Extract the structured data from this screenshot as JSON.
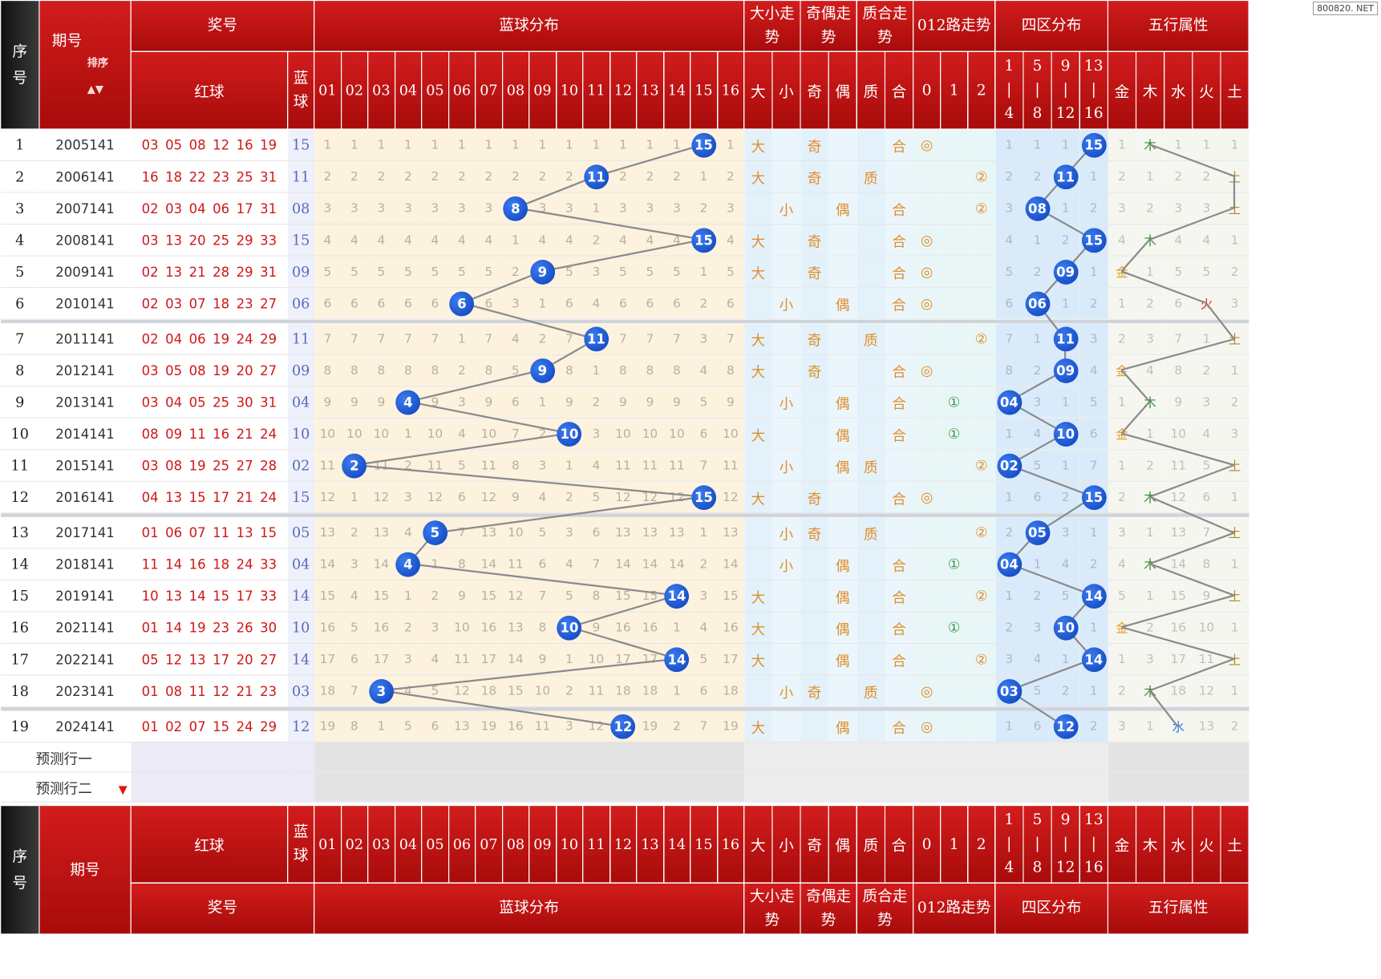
{
  "watermark": "800820. NET",
  "header": {
    "seq": "序号",
    "period": "期号",
    "sort": "排序",
    "prize": "奖号",
    "blue_dist": "蓝球分布",
    "size_trend": "大小走势",
    "oe_trend": "奇偶走势",
    "pc_trend": "质合走势",
    "r012_trend": "012路走势",
    "zone_dist": "四区分布",
    "wuxing": "五行属性",
    "red": "红球",
    "blue": "蓝球",
    "numbers": [
      "01",
      "02",
      "03",
      "04",
      "05",
      "06",
      "07",
      "08",
      "09",
      "10",
      "11",
      "12",
      "13",
      "14",
      "15",
      "16"
    ],
    "size_cols": [
      "大",
      "小"
    ],
    "oe_cols": [
      "奇",
      "偶"
    ],
    "pc_cols": [
      "质",
      "合"
    ],
    "r012_cols": [
      "0",
      "1",
      "2"
    ],
    "zone_cols": [
      [
        "1",
        "|",
        "4"
      ],
      [
        "5",
        "|",
        "8"
      ],
      [
        "9",
        "|",
        "12"
      ],
      [
        "13",
        "|",
        "16"
      ]
    ],
    "wx_cols": [
      "金",
      "木",
      "水",
      "火",
      "土"
    ]
  },
  "rows": [
    {
      "seq": "1",
      "period": "2005141",
      "red": "03 05 08 12 16 19",
      "blue": "15",
      "dist": [
        "1",
        "1",
        "1",
        "1",
        "1",
        "1",
        "1",
        "1",
        "1",
        "1",
        "1",
        "1",
        "1",
        "1",
        "15",
        "1"
      ],
      "size": [
        "大",
        ""
      ],
      "oe": [
        "奇",
        ""
      ],
      "pc": [
        "",
        "合"
      ],
      "r012": [
        "◎",
        "",
        ""
      ],
      "zone": [
        "1",
        "1",
        "1",
        "15"
      ],
      "wx": [
        "1",
        "木",
        "1",
        "1",
        "1"
      ]
    },
    {
      "seq": "2",
      "period": "2006141",
      "red": "16 18 22 23 25 31",
      "blue": "11",
      "dist": [
        "2",
        "2",
        "2",
        "2",
        "2",
        "2",
        "2",
        "2",
        "2",
        "2",
        "11",
        "2",
        "2",
        "2",
        "1",
        "2"
      ],
      "size": [
        "大",
        ""
      ],
      "oe": [
        "奇",
        ""
      ],
      "pc": [
        "质",
        ""
      ],
      "r012": [
        "",
        "",
        "②"
      ],
      "zone": [
        "2",
        "2",
        "11",
        "1"
      ],
      "wx": [
        "2",
        "1",
        "2",
        "2",
        "土"
      ]
    },
    {
      "seq": "3",
      "period": "2007141",
      "red": "02 03 04 06 17 31",
      "blue": "08",
      "dist": [
        "3",
        "3",
        "3",
        "3",
        "3",
        "3",
        "3",
        "8",
        "3",
        "3",
        "1",
        "3",
        "3",
        "3",
        "2",
        "3"
      ],
      "size": [
        "",
        "小"
      ],
      "oe": [
        "",
        "偶"
      ],
      "pc": [
        "",
        "合"
      ],
      "r012": [
        "",
        "",
        "②"
      ],
      "zone": [
        "3",
        "08",
        "1",
        "2"
      ],
      "wx": [
        "3",
        "2",
        "3",
        "3",
        "土"
      ]
    },
    {
      "seq": "4",
      "period": "2008141",
      "red": "03 13 20 25 29 33",
      "blue": "15",
      "dist": [
        "4",
        "4",
        "4",
        "4",
        "4",
        "4",
        "4",
        "1",
        "4",
        "4",
        "2",
        "4",
        "4",
        "4",
        "15",
        "4"
      ],
      "size": [
        "大",
        ""
      ],
      "oe": [
        "奇",
        ""
      ],
      "pc": [
        "",
        "合"
      ],
      "r012": [
        "◎",
        "",
        ""
      ],
      "zone": [
        "4",
        "1",
        "2",
        "15"
      ],
      "wx": [
        "4",
        "木",
        "4",
        "4",
        "1"
      ]
    },
    {
      "seq": "5",
      "period": "2009141",
      "red": "02 13 21 28 29 31",
      "blue": "09",
      "dist": [
        "5",
        "5",
        "5",
        "5",
        "5",
        "5",
        "5",
        "2",
        "9",
        "5",
        "3",
        "5",
        "5",
        "5",
        "1",
        "5"
      ],
      "size": [
        "大",
        ""
      ],
      "oe": [
        "奇",
        ""
      ],
      "pc": [
        "",
        "合"
      ],
      "r012": [
        "◎",
        "",
        ""
      ],
      "zone": [
        "5",
        "2",
        "09",
        "1"
      ],
      "wx": [
        "金",
        "1",
        "5",
        "5",
        "2"
      ]
    },
    {
      "seq": "6",
      "period": "2010141",
      "red": "02 03 07 18 23 27",
      "blue": "06",
      "dist": [
        "6",
        "6",
        "6",
        "6",
        "6",
        "6",
        "6",
        "3",
        "1",
        "6",
        "4",
        "6",
        "6",
        "6",
        "2",
        "6"
      ],
      "size": [
        "",
        "小"
      ],
      "oe": [
        "",
        "偶"
      ],
      "pc": [
        "",
        "合"
      ],
      "r012": [
        "◎",
        "",
        ""
      ],
      "zone": [
        "6",
        "06",
        "1",
        "2"
      ],
      "wx": [
        "1",
        "2",
        "6",
        "火",
        "3"
      ]
    },
    {
      "seq": "7",
      "period": "2011141",
      "red": "02 04 06 19 24 29",
      "blue": "11",
      "dist": [
        "7",
        "7",
        "7",
        "7",
        "7",
        "1",
        "7",
        "4",
        "2",
        "7",
        "11",
        "7",
        "7",
        "7",
        "3",
        "7"
      ],
      "size": [
        "大",
        ""
      ],
      "oe": [
        "奇",
        ""
      ],
      "pc": [
        "质",
        ""
      ],
      "r012": [
        "",
        "",
        "②"
      ],
      "zone": [
        "7",
        "1",
        "11",
        "3"
      ],
      "wx": [
        "2",
        "3",
        "7",
        "1",
        "土"
      ]
    },
    {
      "seq": "8",
      "period": "2012141",
      "red": "03 05 08 19 20 27",
      "blue": "09",
      "dist": [
        "8",
        "8",
        "8",
        "8",
        "8",
        "2",
        "8",
        "5",
        "9",
        "8",
        "1",
        "8",
        "8",
        "8",
        "4",
        "8"
      ],
      "size": [
        "大",
        ""
      ],
      "oe": [
        "奇",
        ""
      ],
      "pc": [
        "",
        "合"
      ],
      "r012": [
        "◎",
        "",
        ""
      ],
      "zone": [
        "8",
        "2",
        "09",
        "4"
      ],
      "wx": [
        "金",
        "4",
        "8",
        "2",
        "1"
      ]
    },
    {
      "seq": "9",
      "period": "2013141",
      "red": "03 04 05 25 30 31",
      "blue": "04",
      "dist": [
        "9",
        "9",
        "9",
        "4",
        "9",
        "3",
        "9",
        "6",
        "1",
        "9",
        "2",
        "9",
        "9",
        "9",
        "5",
        "9"
      ],
      "size": [
        "",
        "小"
      ],
      "oe": [
        "",
        "偶"
      ],
      "pc": [
        "",
        "合"
      ],
      "r012": [
        "",
        "①",
        ""
      ],
      "zone": [
        "04",
        "3",
        "1",
        "5"
      ],
      "wx": [
        "1",
        "木",
        "9",
        "3",
        "2"
      ]
    },
    {
      "seq": "10",
      "period": "2014141",
      "red": "08 09 11 16 21 24",
      "blue": "10",
      "dist": [
        "10",
        "10",
        "10",
        "1",
        "10",
        "4",
        "10",
        "7",
        "2",
        "10",
        "3",
        "10",
        "10",
        "10",
        "6",
        "10"
      ],
      "size": [
        "大",
        ""
      ],
      "oe": [
        "",
        "偶"
      ],
      "pc": [
        "",
        "合"
      ],
      "r012": [
        "",
        "①",
        ""
      ],
      "zone": [
        "1",
        "4",
        "10",
        "6"
      ],
      "wx": [
        "金",
        "1",
        "10",
        "4",
        "3"
      ]
    },
    {
      "seq": "11",
      "period": "2015141",
      "red": "03 08 19 25 27 28",
      "blue": "02",
      "dist": [
        "11",
        "2",
        "11",
        "2",
        "11",
        "5",
        "11",
        "8",
        "3",
        "1",
        "4",
        "11",
        "11",
        "11",
        "7",
        "11"
      ],
      "size": [
        "",
        "小"
      ],
      "oe": [
        "",
        "偶"
      ],
      "pc": [
        "质",
        ""
      ],
      "r012": [
        "",
        "",
        "②"
      ],
      "zone": [
        "02",
        "5",
        "1",
        "7"
      ],
      "wx": [
        "1",
        "2",
        "11",
        "5",
        "土"
      ]
    },
    {
      "seq": "12",
      "period": "2016141",
      "red": "04 13 15 17 21 24",
      "blue": "15",
      "dist": [
        "12",
        "1",
        "12",
        "3",
        "12",
        "6",
        "12",
        "9",
        "4",
        "2",
        "5",
        "12",
        "12",
        "12",
        "15",
        "12"
      ],
      "size": [
        "大",
        ""
      ],
      "oe": [
        "奇",
        ""
      ],
      "pc": [
        "",
        "合"
      ],
      "r012": [
        "◎",
        "",
        ""
      ],
      "zone": [
        "1",
        "6",
        "2",
        "15"
      ],
      "wx": [
        "2",
        "木",
        "12",
        "6",
        "1"
      ]
    },
    {
      "seq": "13",
      "period": "2017141",
      "red": "01 06 07 11 13 15",
      "blue": "05",
      "dist": [
        "13",
        "2",
        "13",
        "4",
        "5",
        "7",
        "13",
        "10",
        "5",
        "3",
        "6",
        "13",
        "13",
        "13",
        "1",
        "13"
      ],
      "size": [
        "",
        "小"
      ],
      "oe": [
        "奇",
        ""
      ],
      "pc": [
        "质",
        ""
      ],
      "r012": [
        "",
        "",
        "②"
      ],
      "zone": [
        "2",
        "05",
        "3",
        "1"
      ],
      "wx": [
        "3",
        "1",
        "13",
        "7",
        "土"
      ]
    },
    {
      "seq": "14",
      "period": "2018141",
      "red": "11 14 16 18 24 33",
      "blue": "04",
      "dist": [
        "14",
        "3",
        "14",
        "4",
        "1",
        "8",
        "14",
        "11",
        "6",
        "4",
        "7",
        "14",
        "14",
        "14",
        "2",
        "14"
      ],
      "size": [
        "",
        "小"
      ],
      "oe": [
        "",
        "偶"
      ],
      "pc": [
        "",
        "合"
      ],
      "r012": [
        "",
        "①",
        ""
      ],
      "zone": [
        "04",
        "1",
        "4",
        "2"
      ],
      "wx": [
        "4",
        "木",
        "14",
        "8",
        "1"
      ]
    },
    {
      "seq": "15",
      "period": "2019141",
      "red": "10 13 14 15 17 33",
      "blue": "14",
      "dist": [
        "15",
        "4",
        "15",
        "1",
        "2",
        "9",
        "15",
        "12",
        "7",
        "5",
        "8",
        "15",
        "15",
        "14",
        "3",
        "15"
      ],
      "size": [
        "大",
        ""
      ],
      "oe": [
        "",
        "偶"
      ],
      "pc": [
        "",
        "合"
      ],
      "r012": [
        "",
        "",
        "②"
      ],
      "zone": [
        "1",
        "2",
        "5",
        "14"
      ],
      "wx": [
        "5",
        "1",
        "15",
        "9",
        "土"
      ]
    },
    {
      "seq": "16",
      "period": "2021141",
      "red": "01 14 19 23 26 30",
      "blue": "10",
      "dist": [
        "16",
        "5",
        "16",
        "2",
        "3",
        "10",
        "16",
        "13",
        "8",
        "10",
        "9",
        "16",
        "16",
        "1",
        "4",
        "16"
      ],
      "size": [
        "大",
        ""
      ],
      "oe": [
        "",
        "偶"
      ],
      "pc": [
        "",
        "合"
      ],
      "r012": [
        "",
        "①",
        ""
      ],
      "zone": [
        "2",
        "3",
        "10",
        "1"
      ],
      "wx": [
        "金",
        "2",
        "16",
        "10",
        "1"
      ]
    },
    {
      "seq": "17",
      "period": "2022141",
      "red": "05 12 13 17 20 27",
      "blue": "14",
      "dist": [
        "17",
        "6",
        "17",
        "3",
        "4",
        "11",
        "17",
        "14",
        "9",
        "1",
        "10",
        "17",
        "17",
        "14",
        "5",
        "17"
      ],
      "size": [
        "大",
        ""
      ],
      "oe": [
        "",
        "偶"
      ],
      "pc": [
        "",
        "合"
      ],
      "r012": [
        "",
        "",
        "②"
      ],
      "zone": [
        "3",
        "4",
        "1",
        "14"
      ],
      "wx": [
        "1",
        "3",
        "17",
        "11",
        "土"
      ]
    },
    {
      "seq": "18",
      "period": "2023141",
      "red": "01 08 11 12 21 23",
      "blue": "03",
      "dist": [
        "18",
        "7",
        "3",
        "4",
        "5",
        "12",
        "18",
        "15",
        "10",
        "2",
        "11",
        "18",
        "18",
        "1",
        "6",
        "18"
      ],
      "size": [
        "",
        "小"
      ],
      "oe": [
        "奇",
        ""
      ],
      "pc": [
        "质",
        ""
      ],
      "r012": [
        "◎",
        "",
        ""
      ],
      "zone": [
        "03",
        "5",
        "2",
        "1"
      ],
      "wx": [
        "2",
        "木",
        "18",
        "12",
        "1"
      ]
    },
    {
      "seq": "19",
      "period": "2024141",
      "red": "01 02 07 15 24 29",
      "blue": "12",
      "dist": [
        "19",
        "8",
        "1",
        "5",
        "6",
        "13",
        "19",
        "16",
        "11",
        "3",
        "12",
        "12",
        "19",
        "2",
        "7",
        "19"
      ],
      "size": [
        "大",
        ""
      ],
      "oe": [
        "",
        "偶"
      ],
      "pc": [
        "",
        "合"
      ],
      "r012": [
        "◎",
        "",
        ""
      ],
      "zone": [
        "1",
        "6",
        "12",
        "2"
      ],
      "wx": [
        "3",
        "1",
        "水",
        "13",
        "2"
      ]
    }
  ],
  "predict": {
    "row1": "预测行一",
    "row2": "预测行二"
  }
}
